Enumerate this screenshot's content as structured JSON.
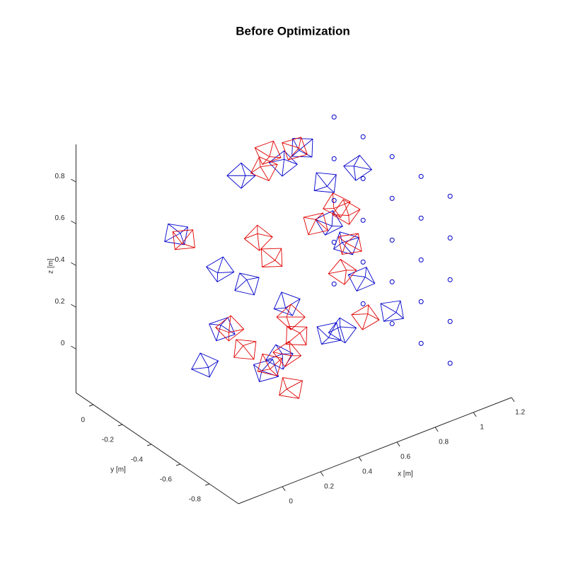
{
  "chart_data": {
    "type": "scatter3d",
    "title": "Before Optimization",
    "xlabel": "x [m]",
    "ylabel": "y [m]",
    "zlabel": "z [m]",
    "xlim": [
      -0.23,
      1.2
    ],
    "ylim": [
      -1.0,
      0.12
    ],
    "zlim": [
      -0.21,
      0.98
    ],
    "xticks": [
      0,
      0.2,
      0.4,
      0.6,
      0.8,
      1,
      1.2
    ],
    "yticks": [
      -0.8,
      -0.6,
      -0.4,
      -0.2,
      0
    ],
    "zticks": [
      0,
      0.2,
      0.4,
      0.6,
      0.8
    ],
    "landmarks": {
      "color": "#0000cc",
      "x": [
        1.03,
        1.03,
        1.03,
        1.03,
        1.03,
        1.03,
        1.03,
        1.03,
        1.03,
        1.03,
        1.03,
        1.03,
        1.03,
        1.03,
        1.03,
        1.03,
        1.03,
        1.03,
        1.03,
        1.03,
        1.03,
        1.03,
        1.03,
        1.03,
        1.03
      ],
      "y": [
        0,
        0,
        0,
        0,
        0,
        -0.2,
        -0.2,
        -0.2,
        -0.2,
        -0.2,
        -0.4,
        -0.4,
        -0.4,
        -0.4,
        -0.4,
        -0.6,
        -0.6,
        -0.6,
        -0.6,
        -0.6,
        -0.8,
        -0.8,
        -0.8,
        -0.8,
        -0.8
      ],
      "z": [
        0.72,
        0.52,
        0.32,
        0.12,
        -0.08,
        0.72,
        0.52,
        0.32,
        0.12,
        -0.08,
        0.72,
        0.52,
        0.32,
        0.12,
        -0.08,
        0.72,
        0.52,
        0.32,
        0.12,
        -0.08,
        0.72,
        0.52,
        0.32,
        0.12,
        -0.08
      ]
    },
    "series": [
      {
        "color": "#0000cc",
        "x": [
          0.24,
          0.56,
          0.46,
          0.68,
          0.85,
          -0.1,
          0.13,
          0.27,
          0.7,
          0.79,
          0.87,
          0.48,
          0.14,
          0.05,
          0.37,
          0.44,
          0.7,
          0.77,
          1.03
        ],
        "y": [
          -0.4,
          -0.4,
          -0.4,
          -0.4,
          -0.4,
          -0.4,
          -0.4,
          -0.4,
          -0.4,
          -0.4,
          -0.4,
          -0.4,
          -0.4,
          -0.4,
          -0.4,
          -0.4,
          -0.4,
          -0.4,
          -0.4
        ],
        "z": [
          0.91,
          0.93,
          0.89,
          0.72,
          0.73,
          0.75,
          0.5,
          0.38,
          0.52,
          0.39,
          0.19,
          0.21,
          0.21,
          0.07,
          -0.07,
          -0.03,
          -0.01,
          -0.02,
          -0.02
        ]
      },
      {
        "color": "#e00000",
        "x": [
          0.38,
          0.36,
          0.52,
          0.74,
          0.63,
          0.79,
          0.81,
          0.77,
          -0.06,
          0.33,
          0.4,
          0.5,
          0.53,
          0.18,
          0.26,
          0.48,
          0.5,
          0.89,
          0.39
        ],
        "y": [
          -0.4,
          -0.4,
          -0.4,
          -0.4,
          -0.4,
          -0.4,
          -0.4,
          -0.4,
          -0.4,
          -0.4,
          -0.4,
          -0.4,
          -0.4,
          -0.4,
          -0.4,
          -0.4,
          -0.4,
          -0.4,
          -0.4
        ],
        "z": [
          0.97,
          0.9,
          0.94,
          0.59,
          0.54,
          0.54,
          0.38,
          0.26,
          0.71,
          0.58,
          0.46,
          0.14,
          0.04,
          0.2,
          0.07,
          -0.03,
          -0.2,
          0,
          -0.05
        ]
      }
    ]
  }
}
